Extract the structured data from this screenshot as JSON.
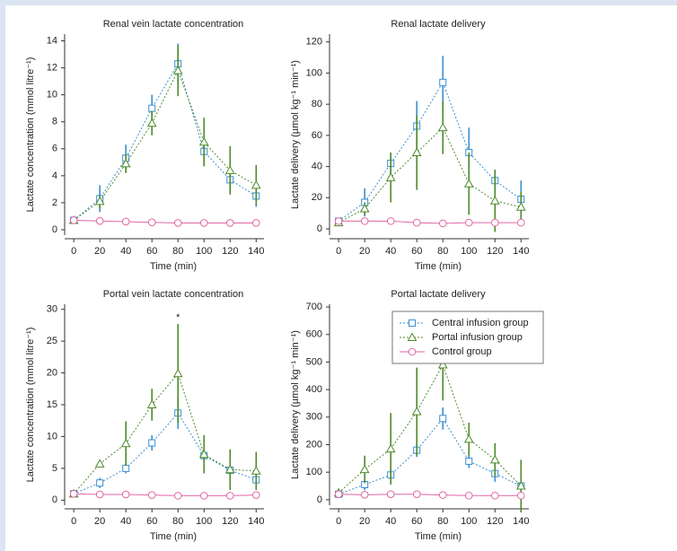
{
  "chart_data": [
    {
      "type": "line",
      "title": "Renal vein lactate concentration",
      "xlabel": "Time (min)",
      "ylabel": "Lactate concentration (mmol litre⁻¹)",
      "x": [
        0,
        20,
        40,
        60,
        80,
        100,
        120,
        140
      ],
      "xlim": [
        -7,
        146
      ],
      "xticks": [
        0,
        20,
        40,
        60,
        80,
        100,
        120,
        140
      ],
      "ylim": [
        -0.4,
        14.5
      ],
      "yticks": [
        0,
        2,
        4,
        6,
        8,
        10,
        12,
        14
      ],
      "series": [
        {
          "color": "#3a8fd0",
          "marker": "square",
          "linestyle": "dashed",
          "values": [
            0.7,
            2.3,
            5.3,
            9.0,
            12.3,
            5.8,
            3.7,
            2.5
          ],
          "errors": [
            0.1,
            1.0,
            1.0,
            1.0,
            1.5,
            1.0,
            0.8,
            0.8
          ]
        },
        {
          "color": "#4d8a2a",
          "marker": "triangle",
          "linestyle": "dashed",
          "values": [
            0.7,
            2.1,
            4.9,
            7.9,
            11.8,
            6.5,
            4.4,
            3.3
          ],
          "errors": [
            0.1,
            0.5,
            0.7,
            0.9,
            1.9,
            1.8,
            1.8,
            1.5
          ]
        },
        {
          "color": "#e066a6",
          "marker": "circle",
          "linestyle": "solid",
          "values": [
            0.7,
            0.65,
            0.6,
            0.55,
            0.5,
            0.5,
            0.5,
            0.5
          ],
          "errors": [
            0.1,
            0.1,
            0.1,
            0.1,
            0.1,
            0.1,
            0.1,
            0.1
          ]
        }
      ]
    },
    {
      "type": "line",
      "title": "Renal lactate delivery",
      "xlabel": "Time (min)",
      "ylabel": "Lactate delivery (µmol kg⁻¹ min⁻¹)",
      "x": [
        0,
        20,
        40,
        60,
        80,
        100,
        120,
        140
      ],
      "xlim": [
        -7,
        146
      ],
      "xticks": [
        0,
        20,
        40,
        60,
        80,
        100,
        120,
        140
      ],
      "ylim": [
        -4,
        125
      ],
      "yticks": [
        0,
        20,
        40,
        60,
        80,
        100,
        120
      ],
      "series": [
        {
          "color": "#3a8fd0",
          "marker": "square",
          "linestyle": "dashed",
          "values": [
            5,
            17,
            42,
            66,
            94,
            49,
            31,
            19
          ],
          "errors": [
            1,
            9,
            7,
            16,
            17,
            16,
            7,
            12
          ]
        },
        {
          "color": "#4d8a2a",
          "marker": "triangle",
          "linestyle": "dashed",
          "values": [
            4,
            13,
            33,
            49,
            65,
            29,
            18,
            14
          ],
          "errors": [
            1,
            4,
            16,
            24,
            17,
            20,
            20,
            10
          ]
        },
        {
          "color": "#e066a6",
          "marker": "circle",
          "linestyle": "solid",
          "values": [
            5,
            5,
            5,
            4,
            3.5,
            4,
            4,
            4
          ],
          "errors": [
            1,
            1,
            1,
            1,
            1,
            1,
            1,
            1
          ]
        }
      ]
    },
    {
      "type": "line",
      "title": "Portal vein lactate concentration",
      "xlabel": "Time (min)",
      "ylabel": "Lactate concentration (mmol litre⁻¹)",
      "x": [
        0,
        20,
        40,
        60,
        80,
        100,
        120,
        140
      ],
      "xlim": [
        -7,
        146
      ],
      "xticks": [
        0,
        20,
        40,
        60,
        80,
        100,
        120,
        140
      ],
      "ylim": [
        -0.8,
        30.8
      ],
      "yticks": [
        0,
        5,
        10,
        15,
        20,
        25,
        30
      ],
      "annotations": [
        {
          "text": "*",
          "x": 80
        }
      ],
      "series": [
        {
          "color": "#3a8fd0",
          "marker": "square",
          "linestyle": "dashed",
          "values": [
            1,
            2.7,
            5,
            9,
            13.7,
            7,
            4.7,
            3.2
          ],
          "errors": [
            0.3,
            0.8,
            0.8,
            1.2,
            2.5,
            1,
            0.8,
            1
          ]
        },
        {
          "color": "#4d8a2a",
          "marker": "triangle",
          "linestyle": "dashed",
          "values": [
            1,
            5.7,
            8.9,
            15,
            19.9,
            7.2,
            4.8,
            4.6
          ],
          "errors": [
            0.3,
            0.4,
            3.5,
            2.5,
            7.8,
            3,
            3.2,
            3
          ]
        },
        {
          "color": "#e066a6",
          "marker": "circle",
          "linestyle": "solid",
          "values": [
            1,
            0.9,
            0.9,
            0.8,
            0.7,
            0.7,
            0.7,
            0.8
          ],
          "errors": [
            0.2,
            0.2,
            0.2,
            0.2,
            0.2,
            0.2,
            0.2,
            0.2
          ]
        }
      ]
    },
    {
      "type": "line",
      "title": "Portal lactate delivery",
      "xlabel": "Time (min)",
      "ylabel": "Lactate delivery (µmol kg⁻¹ min⁻¹)",
      "x": [
        0,
        20,
        40,
        60,
        80,
        100,
        120,
        140
      ],
      "xlim": [
        -7,
        146
      ],
      "xticks": [
        0,
        20,
        40,
        60,
        80,
        100,
        120,
        140
      ],
      "ylim": [
        -20,
        710
      ],
      "yticks": [
        0,
        100,
        200,
        300,
        400,
        500,
        600,
        700
      ],
      "annotations": [
        {
          "text": "*",
          "x": 80
        }
      ],
      "legend": "upper right",
      "series": [
        {
          "name": "Central infusion group",
          "color": "#3a8fd0",
          "marker": "square",
          "linestyle": "dashed",
          "values": [
            20,
            55,
            90,
            180,
            295,
            140,
            95,
            50
          ],
          "errors": [
            5,
            20,
            20,
            25,
            40,
            25,
            30,
            10
          ]
        },
        {
          "name": "Portal infusion group",
          "color": "#4d8a2a",
          "marker": "triangle",
          "linestyle": "dashed",
          "values": [
            25,
            110,
            185,
            320,
            490,
            220,
            145,
            50
          ],
          "errors": [
            5,
            50,
            130,
            160,
            130,
            60,
            60,
            95
          ]
        },
        {
          "name": "Control group",
          "color": "#e066a6",
          "marker": "circle",
          "linestyle": "solid",
          "values": [
            20,
            18,
            20,
            20,
            17,
            15,
            15,
            15
          ],
          "errors": [
            5,
            5,
            5,
            5,
            5,
            5,
            5,
            5
          ]
        }
      ]
    }
  ]
}
